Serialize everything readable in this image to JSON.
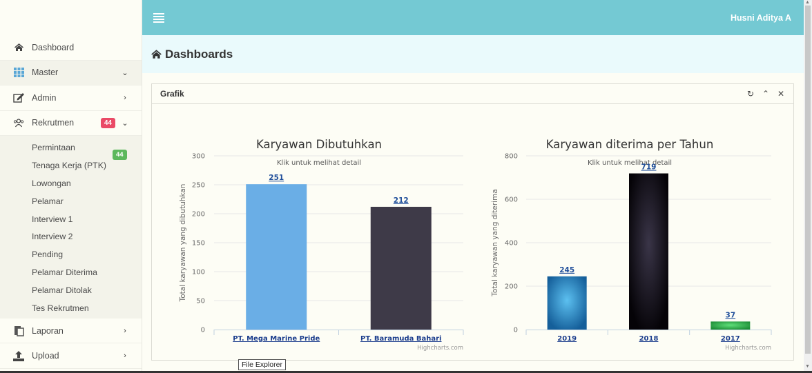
{
  "topbar": {
    "user_name": "Husni Aditya A"
  },
  "page": {
    "title": "Dashboards"
  },
  "sidebar": {
    "items": [
      {
        "label": "Dashboard"
      },
      {
        "label": "Master"
      },
      {
        "label": "Admin"
      },
      {
        "label": "Rekrutmen",
        "badge": "44"
      },
      {
        "label": "Laporan"
      },
      {
        "label": "Upload"
      }
    ],
    "rekrutmen_sub": [
      {
        "label": "Permintaan"
      },
      {
        "label": "Tenaga Kerja (PTK)"
      },
      {
        "label": "Lowongan"
      },
      {
        "label": "Pelamar"
      },
      {
        "label": "Interview 1"
      },
      {
        "label": "Interview 2"
      },
      {
        "label": "Pending"
      },
      {
        "label": "Pelamar Diterima"
      },
      {
        "label": "Pelamar Ditolak"
      },
      {
        "label": "Tes Rekrutmen"
      }
    ],
    "sub_badge": "44"
  },
  "panel": {
    "title": "Grafik"
  },
  "tooltip": "File Explorer",
  "chart_data": [
    {
      "type": "bar",
      "title": "Karyawan Dibutuhkan",
      "subtitle": "Klik untuk melihat detail",
      "ylabel": "Total karyawan yang dibutuhkan",
      "xlabel": "",
      "categories": [
        "PT. Mega Marine Pride",
        "PT. Baramuda Bahari"
      ],
      "values": [
        251,
        212
      ],
      "colors": [
        "#6aaee6",
        "#3e3a48"
      ],
      "ylim": [
        0,
        300
      ],
      "yticks": [
        0,
        50,
        100,
        150,
        200,
        250,
        300
      ],
      "credits": "Highcharts.com",
      "grid": true,
      "legend": "none"
    },
    {
      "type": "bar",
      "title": "Karyawan diterima per Tahun",
      "subtitle": "Klik untuk melihat detail",
      "ylabel": "Total karyawan yang diterima",
      "xlabel": "",
      "categories": [
        "2019",
        "2018",
        "2017"
      ],
      "values": [
        245,
        719,
        37
      ],
      "colors": [
        "#1f7fc2",
        "#0d0a14",
        "#2fae48"
      ],
      "ylim": [
        0,
        800
      ],
      "yticks": [
        0,
        200,
        400,
        600,
        800
      ],
      "credits": "Highcharts.com",
      "grid": true,
      "legend": "none"
    }
  ]
}
